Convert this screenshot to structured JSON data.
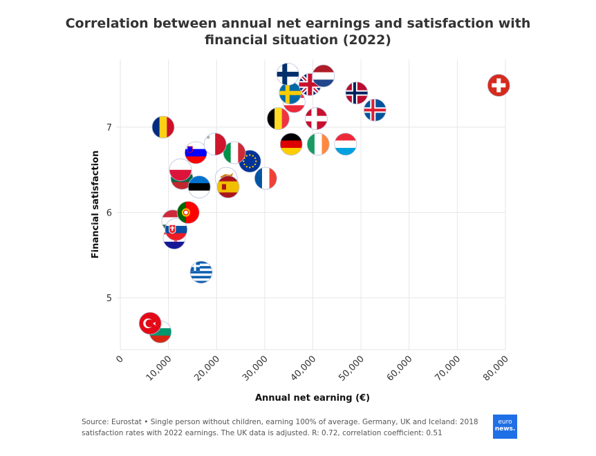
{
  "chart_data": {
    "type": "scatter",
    "title": "Correlation between annual net earnings and satisfaction with financial situation (2022)",
    "title_lines": [
      "Correlation between annual net earnings and satisfaction with",
      "financial situation (2022)"
    ],
    "xlabel": "Annual net earning (€)",
    "ylabel": "Financial satisfaction",
    "xlim": [
      0,
      80000
    ],
    "ylim": [
      4.45,
      7.8
    ],
    "xticks": [
      0,
      10000,
      20000,
      30000,
      40000,
      50000,
      60000,
      70000,
      80000
    ],
    "xtick_labels": [
      "0",
      "10,000",
      "20,000",
      "30,000",
      "40,000",
      "50,000",
      "60,000",
      "70,000",
      "80,000"
    ],
    "yticks": [
      5,
      6,
      7
    ],
    "ytick_labels": [
      "5",
      "6",
      "7"
    ],
    "grid": true,
    "marker": "country flags",
    "points": [
      {
        "country": "Bulgaria",
        "flag": "bulgaria",
        "x": 8300,
        "y": 4.6
      },
      {
        "country": "Turkey",
        "flag": "turkey",
        "x": 6200,
        "y": 4.7
      },
      {
        "country": "Greece",
        "flag": "greece",
        "x": 16800,
        "y": 5.3
      },
      {
        "country": "Croatia",
        "flag": "croatia",
        "x": 11200,
        "y": 5.7
      },
      {
        "country": "Hungary",
        "flag": "hungary",
        "x": 10900,
        "y": 5.9
      },
      {
        "country": "Slovakia",
        "flag": "slovakia",
        "x": 11600,
        "y": 5.8
      },
      {
        "country": "Portugal",
        "flag": "portugal",
        "x": 14100,
        "y": 6.0
      },
      {
        "country": "Lithuania",
        "flag": "lithuania",
        "x": 12800,
        "y": 6.4
      },
      {
        "country": "Poland",
        "flag": "poland",
        "x": 12500,
        "y": 6.5
      },
      {
        "country": "Estonia",
        "flag": "estonia",
        "x": 16400,
        "y": 6.3
      },
      {
        "country": "Cyprus",
        "flag": "cyprus",
        "x": 22000,
        "y": 6.4
      },
      {
        "country": "Spain",
        "flag": "spain",
        "x": 22400,
        "y": 6.3
      },
      {
        "country": "France",
        "flag": "france",
        "x": 30200,
        "y": 6.4
      },
      {
        "country": "European Union",
        "flag": "eu",
        "x": 26900,
        "y": 6.6
      },
      {
        "country": "Italy",
        "flag": "italy",
        "x": 23700,
        "y": 6.7
      },
      {
        "country": "Slovenia",
        "flag": "slovenia",
        "x": 15700,
        "y": 6.7
      },
      {
        "country": "Malta",
        "flag": "malta",
        "x": 19700,
        "y": 6.8
      },
      {
        "country": "Romania",
        "flag": "romania",
        "x": 8900,
        "y": 7.0
      },
      {
        "country": "Germany",
        "flag": "germany",
        "x": 35500,
        "y": 6.8
      },
      {
        "country": "Ireland",
        "flag": "ireland",
        "x": 41100,
        "y": 6.8
      },
      {
        "country": "Luxembourg",
        "flag": "luxembourg",
        "x": 46800,
        "y": 6.8
      },
      {
        "country": "Belgium",
        "flag": "belgium",
        "x": 32800,
        "y": 7.1
      },
      {
        "country": "Denmark",
        "flag": "denmark",
        "x": 40700,
        "y": 7.1
      },
      {
        "country": "Iceland",
        "flag": "iceland",
        "x": 52900,
        "y": 7.2
      },
      {
        "country": "Austria",
        "flag": "austria",
        "x": 36100,
        "y": 7.3
      },
      {
        "country": "Norway",
        "flag": "norway",
        "x": 49100,
        "y": 7.4
      },
      {
        "country": "Sweden",
        "flag": "sweden",
        "x": 35300,
        "y": 7.4
      },
      {
        "country": "United Kingdom",
        "flag": "uk",
        "x": 39400,
        "y": 7.5
      },
      {
        "country": "Netherlands",
        "flag": "netherlands",
        "x": 42200,
        "y": 7.6
      },
      {
        "country": "Finland",
        "flag": "finland",
        "x": 34800,
        "y": 7.62
      },
      {
        "country": "Switzerland",
        "flag": "switzerland",
        "x": 78600,
        "y": 7.49
      }
    ]
  },
  "footer": {
    "source_line1": "Source: Eurostat • Single person without children, earning 100% of average. Germany, UK and Iceland: 2018",
    "source_line2": "satisfaction rates with 2022 earnings. The UK data is adjusted. R: 0.72, correlation coefficient: 0.51",
    "logo_top": "euro",
    "logo_bottom": "news.",
    "logo_color": "#1f6fe6"
  }
}
